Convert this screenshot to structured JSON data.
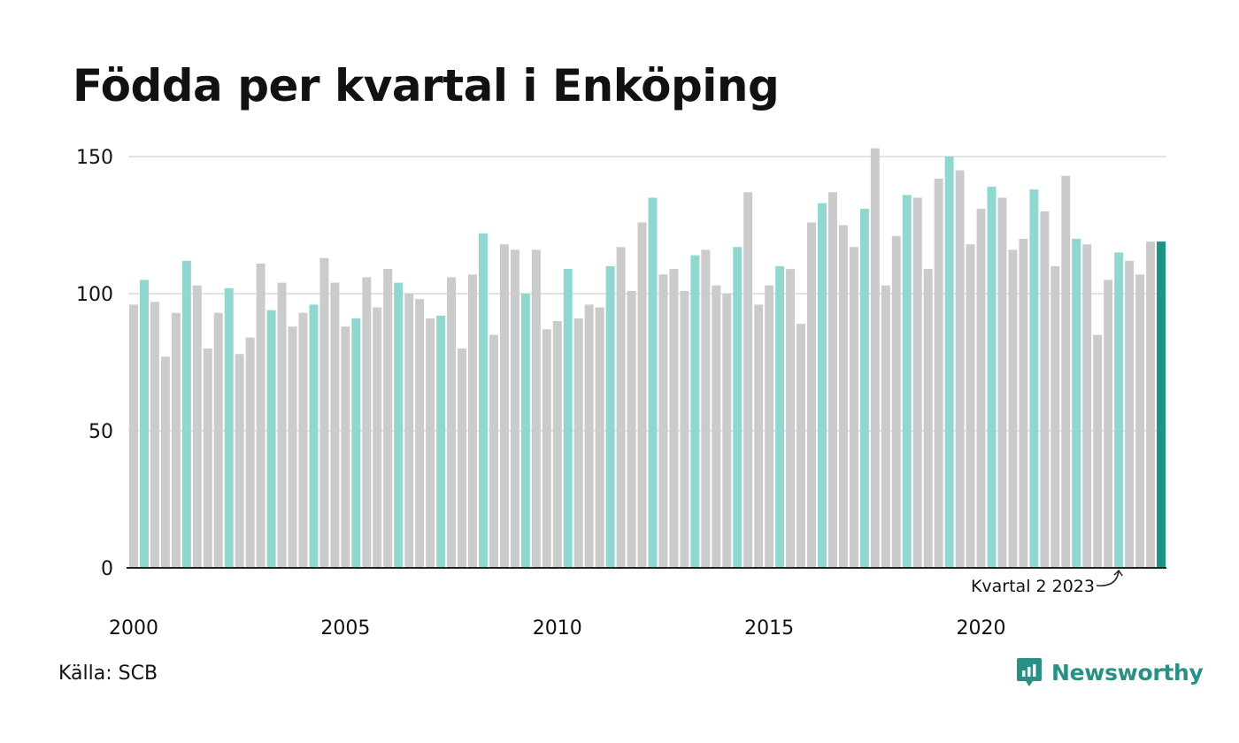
{
  "title": "Födda per kvartal i Enköping",
  "source": "Källa: SCB",
  "brand": {
    "name": "Newsworthy",
    "icon": "newsworthy-logo-icon"
  },
  "colors": {
    "default_bar": "#cbcbcb",
    "q2_bar": "#8ed8cf",
    "highlight_bar": "#1b9385",
    "grid": "#e3e3e3",
    "axis": "#222222"
  },
  "chart_data": {
    "type": "bar",
    "title": "Födda per kvartal i Enköping",
    "ylim": [
      0,
      150
    ],
    "y_ticks": [
      0,
      50,
      100,
      150
    ],
    "x_tick_labels": [
      "2000",
      "2005",
      "2010",
      "2015",
      "2020"
    ],
    "grid": true,
    "start_year": 2000,
    "start_quarter": 1,
    "annotation": "Kvartal 2 2023",
    "values": [
      96,
      105,
      97,
      77,
      93,
      112,
      103,
      80,
      93,
      102,
      78,
      84,
      111,
      94,
      104,
      88,
      93,
      96,
      113,
      104,
      88,
      91,
      106,
      95,
      109,
      104,
      100,
      98,
      91,
      92,
      106,
      80,
      107,
      122,
      85,
      118,
      116,
      100,
      116,
      87,
      90,
      109,
      91,
      96,
      95,
      110,
      117,
      101,
      126,
      135,
      107,
      109,
      101,
      114,
      116,
      103,
      100,
      117,
      137,
      96,
      103,
      110,
      109,
      89,
      126,
      133,
      137,
      125,
      117,
      131,
      153,
      103,
      121,
      136,
      135,
      109,
      142,
      150,
      145,
      118,
      131,
      139,
      135,
      116,
      120,
      138,
      130,
      110,
      143,
      120,
      118,
      85,
      105,
      115,
      112,
      107,
      119,
      119
    ]
  }
}
